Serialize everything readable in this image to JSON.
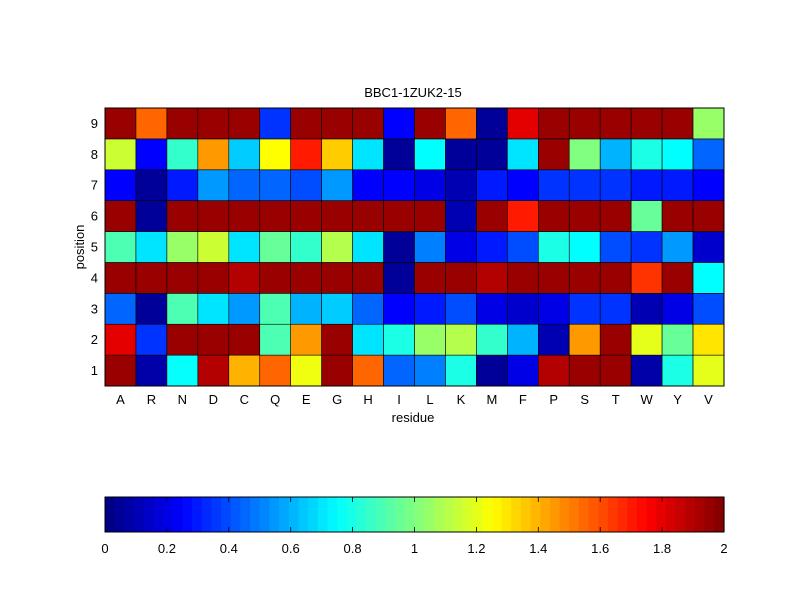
{
  "chart_data": {
    "type": "heatmap",
    "title": "BBC1-1ZUK2-15",
    "xlabel": "residue",
    "ylabel": "position",
    "x_categories": [
      "A",
      "R",
      "N",
      "D",
      "C",
      "Q",
      "E",
      "G",
      "H",
      "I",
      "L",
      "K",
      "M",
      "F",
      "P",
      "S",
      "T",
      "W",
      "Y",
      "V"
    ],
    "y_categories": [
      "1",
      "2",
      "3",
      "4",
      "5",
      "6",
      "7",
      "8",
      "9"
    ],
    "values": [
      [
        1.95,
        0.08,
        0.76,
        1.9,
        1.4,
        1.55,
        1.22,
        1.95,
        1.55,
        0.45,
        0.5,
        0.8,
        0.05,
        0.2,
        1.9,
        1.95,
        1.95,
        0.08,
        0.8,
        1.2
      ],
      [
        1.8,
        0.35,
        1.95,
        1.95,
        1.95,
        0.9,
        1.45,
        1.95,
        0.7,
        0.8,
        1.05,
        1.1,
        0.85,
        0.6,
        0.1,
        1.45,
        1.95,
        1.2,
        0.95,
        1.3
      ],
      [
        0.45,
        0.05,
        0.9,
        0.7,
        0.55,
        0.9,
        0.6,
        0.65,
        0.45,
        0.25,
        0.3,
        0.4,
        0.2,
        0.15,
        0.2,
        0.35,
        0.35,
        0.1,
        0.2,
        0.4
      ],
      [
        1.95,
        1.95,
        1.95,
        1.95,
        1.9,
        1.95,
        1.95,
        1.95,
        1.95,
        0.05,
        1.95,
        1.95,
        1.9,
        1.95,
        1.95,
        1.95,
        1.95,
        1.65,
        1.95,
        0.75
      ],
      [
        0.9,
        0.7,
        1.05,
        1.15,
        0.7,
        0.95,
        0.85,
        1.1,
        0.7,
        0.05,
        0.5,
        0.2,
        0.3,
        0.4,
        0.8,
        0.75,
        0.4,
        0.35,
        0.55,
        0.15
      ],
      [
        1.95,
        0.05,
        1.95,
        1.95,
        1.95,
        1.95,
        1.95,
        1.95,
        1.95,
        1.95,
        1.95,
        0.1,
        1.95,
        1.7,
        1.95,
        1.95,
        1.95,
        0.95,
        1.95,
        1.95
      ],
      [
        0.25,
        0.05,
        0.3,
        0.55,
        0.45,
        0.45,
        0.4,
        0.55,
        0.25,
        0.25,
        0.2,
        0.1,
        0.3,
        0.25,
        0.35,
        0.35,
        0.35,
        0.3,
        0.3,
        0.25
      ],
      [
        1.15,
        0.25,
        0.85,
        1.45,
        0.65,
        1.25,
        1.7,
        1.35,
        0.7,
        0.05,
        0.75,
        0.05,
        0.05,
        0.7,
        1.95,
        1.0,
        0.6,
        0.8,
        0.75,
        0.45
      ],
      [
        1.95,
        1.55,
        1.95,
        1.95,
        1.95,
        0.35,
        1.95,
        1.95,
        1.95,
        0.25,
        1.95,
        1.55,
        0.05,
        1.8,
        1.95,
        1.95,
        1.95,
        1.95,
        1.95,
        1.05
      ]
    ],
    "value_range": [
      0,
      2
    ],
    "colorbar": {
      "colormap": "jet",
      "ticks": [
        "0",
        "0.2",
        "0.4",
        "0.6",
        "0.8",
        "1",
        "1.2",
        "1.4",
        "1.6",
        "1.8",
        "2"
      ],
      "placement": "bottom"
    }
  }
}
